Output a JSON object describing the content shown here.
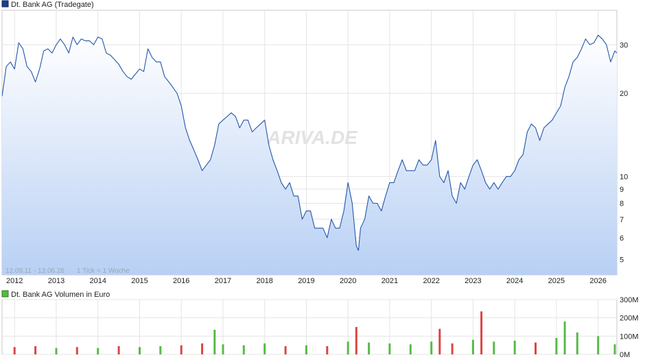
{
  "price_chart": {
    "legend_label": "Dt. Bank AG (Tradegate)",
    "series_color": "#2255aa",
    "fill_color_top": "#ffffff",
    "fill_color_bottom": "#b8d0f4",
    "range_text": "12.09.11 - 13.06.26",
    "tick_text": "1 Tick = 1 Woche",
    "watermark": "ARIVA.DE"
  },
  "volume_chart": {
    "legend_label": "Dt. Bank AG Volumen in Euro",
    "up_color": "#55bb44",
    "down_color": "#dd4444"
  },
  "chart_data": [
    {
      "type": "line",
      "yscale": "log",
      "ylim": [
        4.4,
        40
      ],
      "y_ticks": [
        5,
        6,
        7,
        8,
        9,
        10,
        20,
        30
      ],
      "y_tick_labels": [
        "5",
        "6",
        "7",
        "8",
        "9",
        "10",
        "20",
        "30"
      ],
      "x_ticks": [
        "2012",
        "2013",
        "2014",
        "2015",
        "2016",
        "2017",
        "2018",
        "2019",
        "2020",
        "2021",
        "2022",
        "2023",
        "2024",
        "2025",
        "2026"
      ],
      "x_range": [
        2011.7,
        2026.45
      ],
      "grid": true,
      "series": [
        {
          "x": [
            2011.7,
            2011.8,
            2011.9,
            2012.0,
            2012.1,
            2012.2,
            2012.3,
            2012.4,
            2012.5,
            2012.6,
            2012.7,
            2012.8,
            2012.9,
            2013.0,
            2013.1,
            2013.2,
            2013.3,
            2013.4,
            2013.5,
            2013.6,
            2013.7,
            2013.8,
            2013.9,
            2014.0,
            2014.1,
            2014.2,
            2014.3,
            2014.4,
            2014.5,
            2014.6,
            2014.7,
            2014.8,
            2014.9,
            2015.0,
            2015.1,
            2015.2,
            2015.3,
            2015.4,
            2015.5,
            2015.6,
            2015.7,
            2015.8,
            2015.9,
            2016.0,
            2016.1,
            2016.2,
            2016.3,
            2016.4,
            2016.5,
            2016.6,
            2016.7,
            2016.8,
            2016.9,
            2017.0,
            2017.1,
            2017.2,
            2017.3,
            2017.4,
            2017.5,
            2017.6,
            2017.7,
            2017.8,
            2017.9,
            2018.0,
            2018.1,
            2018.2,
            2018.3,
            2018.4,
            2018.5,
            2018.6,
            2018.7,
            2018.8,
            2018.9,
            2019.0,
            2019.1,
            2019.2,
            2019.3,
            2019.4,
            2019.5,
            2019.6,
            2019.7,
            2019.8,
            2019.9,
            2020.0,
            2020.1,
            2020.2,
            2020.25,
            2020.3,
            2020.4,
            2020.5,
            2020.6,
            2020.7,
            2020.8,
            2020.9,
            2021.0,
            2021.1,
            2021.2,
            2021.3,
            2021.4,
            2021.5,
            2021.6,
            2021.7,
            2021.8,
            2021.9,
            2022.0,
            2022.1,
            2022.2,
            2022.3,
            2022.4,
            2022.5,
            2022.6,
            2022.7,
            2022.8,
            2022.9,
            2023.0,
            2023.1,
            2023.2,
            2023.3,
            2023.4,
            2023.5,
            2023.6,
            2023.7,
            2023.8,
            2023.9,
            2024.0,
            2024.1,
            2024.2,
            2024.3,
            2024.4,
            2024.5,
            2024.6,
            2024.7,
            2024.8,
            2024.9,
            2025.0,
            2025.1,
            2025.2,
            2025.3,
            2025.4,
            2025.5,
            2025.6,
            2025.7,
            2025.8,
            2025.9,
            2026.0,
            2026.1,
            2026.2,
            2026.3,
            2026.4,
            2026.45
          ],
          "values": [
            19.5,
            25.0,
            26.0,
            24.5,
            30.5,
            29.0,
            25.0,
            24.0,
            22.0,
            24.5,
            28.5,
            29.0,
            28.0,
            30.0,
            31.5,
            30.0,
            28.0,
            32.0,
            30.0,
            31.5,
            31.0,
            31.0,
            30.0,
            32.0,
            31.5,
            28.0,
            27.5,
            26.5,
            25.5,
            24.0,
            23.0,
            22.5,
            23.5,
            24.5,
            24.0,
            29.0,
            27.0,
            26.0,
            26.0,
            23.0,
            22.0,
            21.0,
            20.0,
            18.0,
            15.0,
            13.5,
            12.5,
            11.5,
            10.5,
            11.0,
            11.5,
            13.0,
            15.5,
            16.0,
            16.5,
            17.0,
            16.5,
            15.0,
            16.0,
            16.0,
            14.5,
            15.0,
            15.5,
            16.0,
            13.0,
            11.5,
            10.5,
            9.5,
            9.0,
            9.5,
            8.5,
            8.5,
            7.0,
            7.5,
            7.5,
            6.5,
            6.5,
            6.5,
            6.0,
            7.0,
            6.5,
            6.5,
            7.5,
            9.5,
            8.0,
            5.6,
            5.4,
            6.5,
            7.0,
            8.5,
            8.0,
            8.0,
            7.5,
            8.5,
            9.5,
            9.5,
            10.5,
            11.5,
            10.5,
            10.5,
            10.5,
            11.5,
            11.0,
            11.0,
            11.5,
            13.5,
            10.0,
            9.5,
            10.5,
            8.5,
            8.0,
            9.5,
            9.0,
            10.0,
            11.0,
            11.5,
            10.5,
            9.5,
            9.0,
            9.5,
            9.0,
            9.5,
            10.0,
            10.0,
            10.5,
            11.5,
            12.0,
            14.5,
            15.5,
            15.0,
            13.5,
            15.0,
            15.5,
            16.0,
            17.0,
            18.0,
            21.0,
            23.0,
            26.0,
            27.0,
            29.0,
            31.5,
            30.0,
            30.5,
            32.5,
            31.5,
            30.0,
            26.0,
            28.5,
            28.0
          ]
        }
      ]
    },
    {
      "type": "bar",
      "ylim": [
        0,
        300
      ],
      "y_ticks": [
        0,
        100,
        200,
        300
      ],
      "y_tick_labels": [
        "0M",
        "100M",
        "200M",
        "300M"
      ],
      "grid": true,
      "x_range": [
        2011.7,
        2026.45
      ],
      "series": [
        {
          "x": [
            2012.0,
            2012.5,
            2013.0,
            2013.5,
            2014.0,
            2014.5,
            2015.0,
            2015.5,
            2016.0,
            2016.5,
            2016.8,
            2017.0,
            2017.5,
            2018.0,
            2018.5,
            2019.0,
            2019.5,
            2020.0,
            2020.2,
            2020.5,
            2021.0,
            2021.5,
            2022.0,
            2022.2,
            2022.5,
            2023.0,
            2023.2,
            2023.5,
            2024.0,
            2024.5,
            2025.0,
            2025.2,
            2025.5,
            2026.0,
            2026.4
          ],
          "values": [
            40,
            45,
            35,
            40,
            35,
            45,
            40,
            45,
            50,
            60,
            135,
            55,
            50,
            60,
            45,
            50,
            45,
            70,
            150,
            65,
            60,
            55,
            70,
            140,
            60,
            80,
            235,
            70,
            75,
            65,
            90,
            180,
            120,
            100,
            55
          ]
        }
      ]
    }
  ]
}
